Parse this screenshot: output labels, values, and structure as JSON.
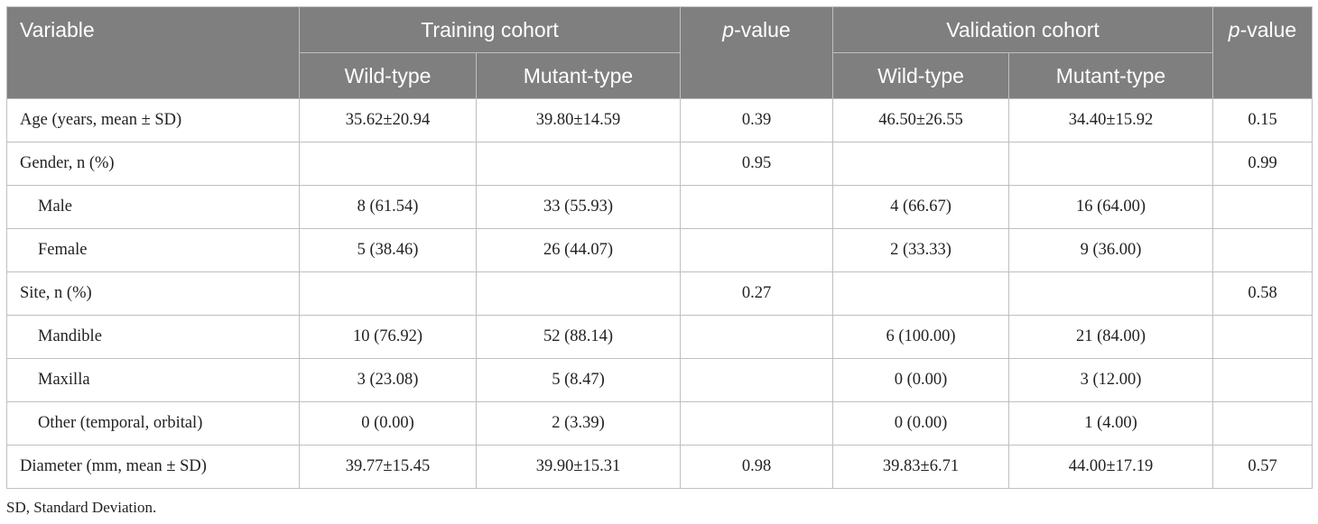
{
  "header": {
    "variable": "Variable",
    "training_cohort": "Training cohort",
    "validation_cohort": "Validation cohort",
    "p_value_italic": "p",
    "p_value_rest": "-value",
    "wild_type": "Wild-type",
    "mutant_type": "Mutant-type"
  },
  "rows": [
    {
      "label": "Age (years, mean ± SD)",
      "tw": "35.62±20.94",
      "tm": "39.80±14.59",
      "tp": "0.39",
      "vw": "46.50±26.55",
      "vm": "34.40±15.92",
      "vp": "0.15"
    },
    {
      "label": "Gender, n (%)",
      "tw": "",
      "tm": "",
      "tp": "0.95",
      "vw": "",
      "vm": "",
      "vp": "0.99"
    },
    {
      "label": "Male",
      "tw": "8 (61.54)",
      "tm": "33 (55.93)",
      "tp": "",
      "vw": "4 (66.67)",
      "vm": "16 (64.00)",
      "vp": ""
    },
    {
      "label": "Female",
      "tw": "5 (38.46)",
      "tm": "26 (44.07)",
      "tp": "",
      "vw": "2 (33.33)",
      "vm": "9 (36.00)",
      "vp": ""
    },
    {
      "label": "Site, n (%)",
      "tw": "",
      "tm": "",
      "tp": "0.27",
      "vw": "",
      "vm": "",
      "vp": "0.58"
    },
    {
      "label": "Mandible",
      "tw": "10 (76.92)",
      "tm": "52 (88.14)",
      "tp": "",
      "vw": "6 (100.00)",
      "vm": "21 (84.00)",
      "vp": ""
    },
    {
      "label": "Maxilla",
      "tw": "3 (23.08)",
      "tm": "5 (8.47)",
      "tp": "",
      "vw": "0 (0.00)",
      "vm": "3 (12.00)",
      "vp": ""
    },
    {
      "label": "Other (temporal, orbital)",
      "tw": "0 (0.00)",
      "tm": "2 (3.39)",
      "tp": "",
      "vw": "0 (0.00)",
      "vm": "1 (4.00)",
      "vp": ""
    },
    {
      "label": "Diameter (mm, mean ± SD)",
      "tw": "39.77±15.45",
      "tm": "39.90±15.31",
      "tp": "0.98",
      "vw": "39.83±6.71",
      "vm": "44.00±17.19",
      "vp": "0.57"
    }
  ],
  "footnote": "SD, Standard Deviation."
}
